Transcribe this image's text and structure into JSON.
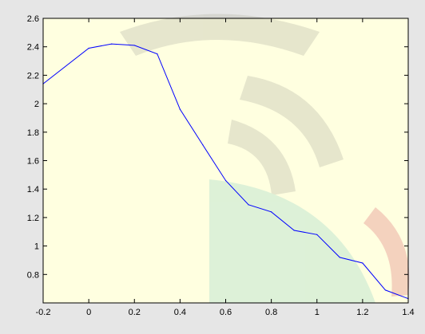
{
  "chart_data": {
    "type": "line",
    "title": "",
    "xlabel": "",
    "ylabel": "",
    "xlim": [
      -0.2,
      1.4
    ],
    "ylim": [
      0.6,
      2.6
    ],
    "xticks": [
      -0.2,
      0,
      0.2,
      0.4,
      0.6,
      0.8,
      1,
      1.2,
      1.4
    ],
    "xtick_labels": [
      "-0.2",
      "0",
      "0.2",
      "0.4",
      "0.6",
      "0.8",
      "1",
      "1.2",
      "1.4"
    ],
    "yticks": [
      0.8,
      1,
      1.2,
      1.4,
      1.6,
      1.8,
      2,
      2.2,
      2.4,
      2.6
    ],
    "ytick_labels": [
      "0.8",
      "1",
      "1.2",
      "1.4",
      "1.6",
      "1.8",
      "2",
      "2.2",
      "2.4",
      "2.6"
    ],
    "grid": false,
    "series": [
      {
        "color": "#0000ff",
        "x": [
          -0.2,
          0,
          0.1,
          0.2,
          0.3,
          0.4,
          0.5,
          0.6,
          0.7,
          0.8,
          0.9,
          1.0,
          1.1,
          1.2,
          1.3,
          1.4
        ],
        "y": [
          2.14,
          2.39,
          2.42,
          2.41,
          2.35,
          1.96,
          1.71,
          1.46,
          1.29,
          1.24,
          1.11,
          1.08,
          0.92,
          0.88,
          0.69,
          0.63
        ]
      }
    ]
  },
  "colors": {
    "plot_background": "#ffffe0",
    "figure_background": "#e6e6e6",
    "line": "#0000ff"
  }
}
